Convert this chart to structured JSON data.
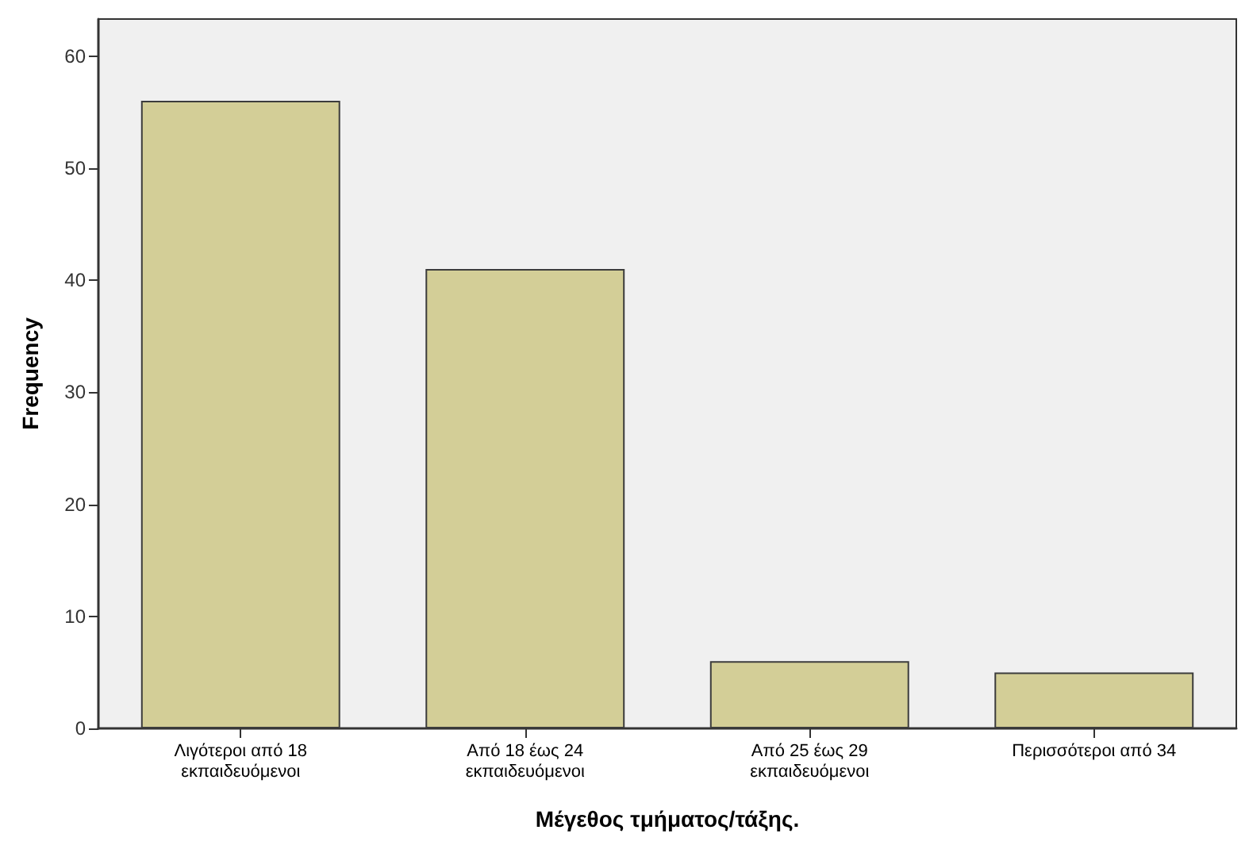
{
  "chart_data": {
    "type": "bar",
    "xlabel": "Μέγεθος τμήματος/τάξης.",
    "ylabel": "Frequency",
    "categories": [
      "Λιγότεροι από 18\nεκπαιδευόμενοι",
      "Από 18 έως 24\nεκπαιδευόμενοι",
      "Από 25 έως 29\nεκπαιδευόμενοι",
      "Περισσότεροι από 34"
    ],
    "values": [
      56,
      41,
      6,
      5
    ],
    "color": "#d3ce97",
    "ylim": [
      0,
      63.3
    ],
    "yticks": [
      0,
      10,
      20,
      30,
      40,
      50,
      60
    ],
    "grid": false
  }
}
